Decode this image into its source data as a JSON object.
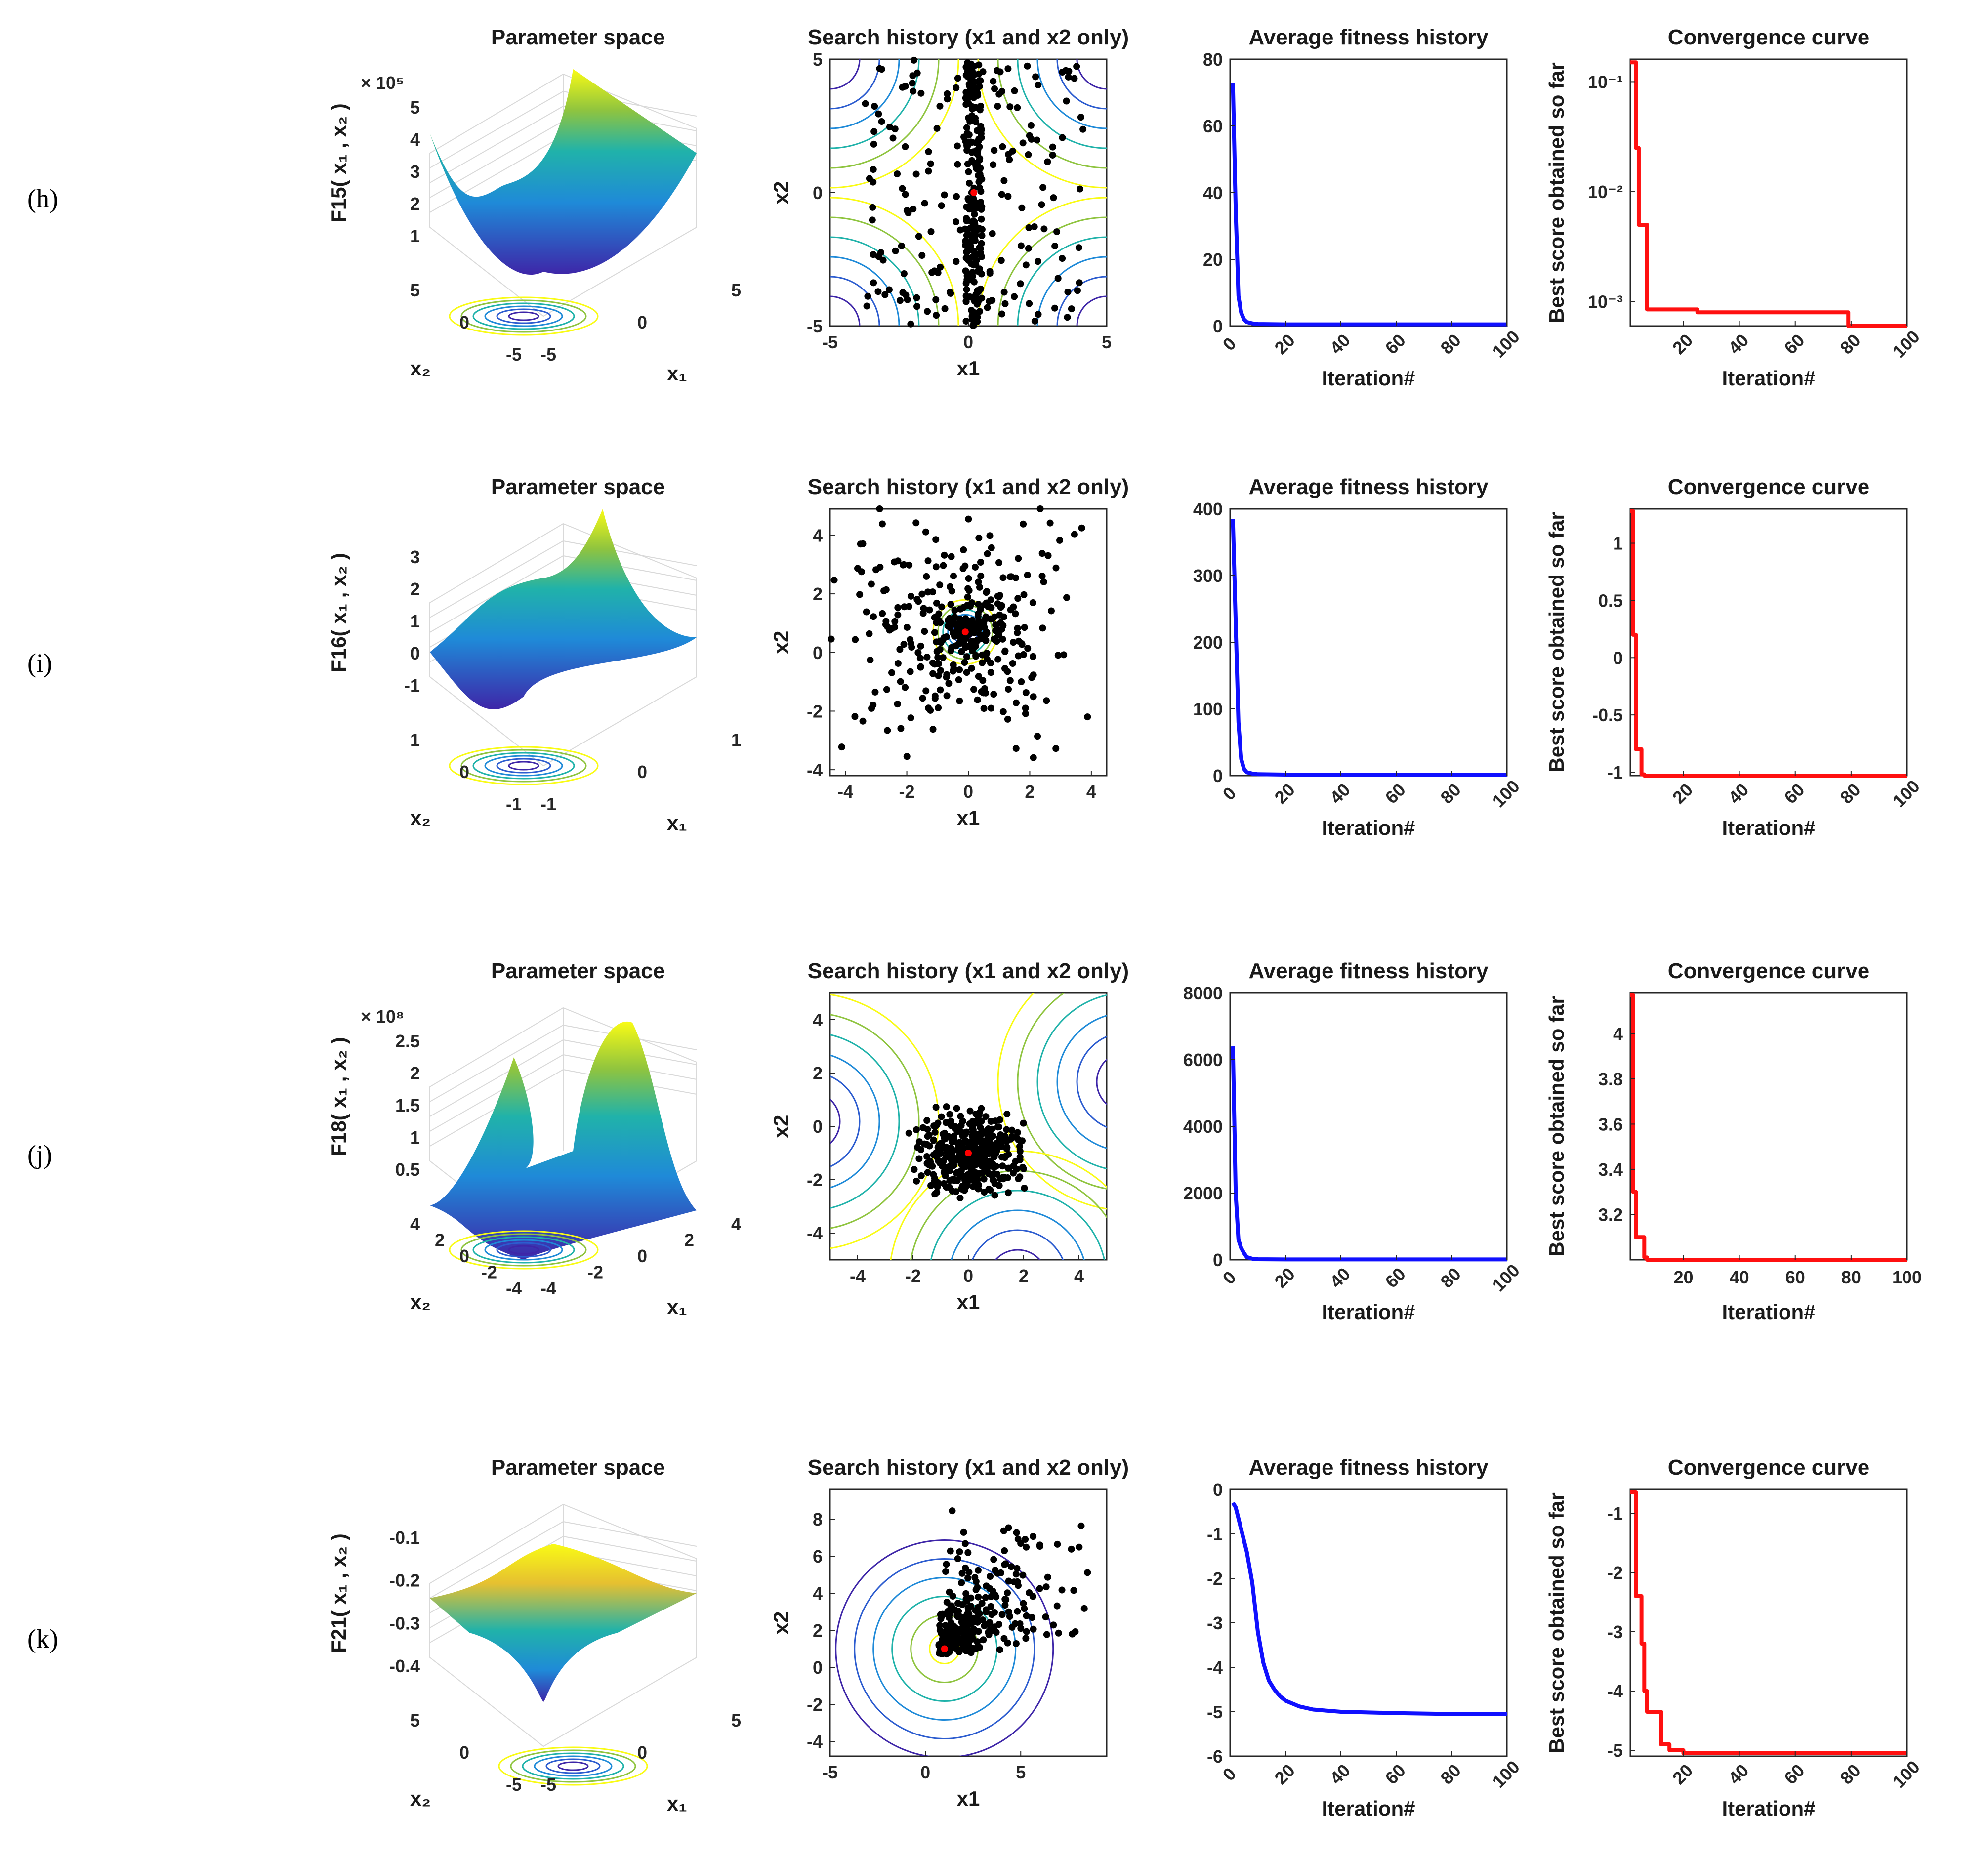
{
  "chart_data": [
    {
      "row_label": "(h)",
      "colors": {
        "surface_low": "#3e26a8",
        "surface_mid": "#20b2aa",
        "surface_high": "#f9fb15",
        "average_line": "#1010ff",
        "convergence_line": "#ff1010",
        "points": "#000000",
        "best_point": "#ff0000"
      },
      "panels": [
        {
          "type": "surface",
          "title": "Parameter space",
          "zlabel": "F15( x₁ , x₂ )",
          "exponent": "× 10⁵",
          "zticks": [
            "5",
            "4",
            "3",
            "2",
            "1"
          ],
          "x1_label": "x₁",
          "x2_label": "x₂",
          "x1_ticks": [
            "-5",
            "0",
            "5"
          ],
          "x2_ticks": [
            "5",
            "0",
            "-5"
          ]
        },
        {
          "type": "scatter",
          "title": "Search history (x1 and x2 only)",
          "xlabel": "x1",
          "ylabel": "x2",
          "xlim": [
            -5,
            5
          ],
          "ylim": [
            -5,
            5
          ],
          "xticks": [
            -5,
            0,
            5
          ],
          "yticks": [
            -5,
            0,
            5
          ],
          "best_point": [
            0.2,
            0.0
          ]
        },
        {
          "type": "line",
          "title": "Average fitness history",
          "xlabel": "Iteration#",
          "ylabel": "",
          "xlim": [
            0,
            100
          ],
          "ylim": [
            0,
            80
          ],
          "xticks": [
            0,
            20,
            40,
            60,
            80,
            100
          ],
          "yticks": [
            0,
            20,
            40,
            60,
            80
          ],
          "x": [
            1,
            2,
            3,
            4,
            5,
            6,
            8,
            10,
            20,
            40,
            60,
            80,
            100
          ],
          "y": [
            73,
            35,
            9,
            4,
            2,
            1.2,
            0.8,
            0.6,
            0.5,
            0.5,
            0.5,
            0.5,
            0.5
          ]
        },
        {
          "type": "step",
          "title": "Convergence curve",
          "xlabel": "Iteration#",
          "ylabel": "Best score obtained so far",
          "scale": "log",
          "xlim": [
            1,
            100
          ],
          "ylim": [
            0.0006,
            0.16
          ],
          "xticks": [
            20,
            40,
            60,
            80,
            100
          ],
          "yticks": [
            0.001,
            0.01,
            0.1
          ],
          "ytick_labels": [
            "10⁻³",
            "10⁻²",
            "10⁻¹"
          ],
          "x": [
            1,
            2,
            3,
            4,
            5,
            6,
            7,
            8,
            25,
            78,
            79,
            100
          ],
          "y": [
            0.15,
            0.15,
            0.025,
            0.005,
            0.005,
            0.005,
            0.00085,
            0.00085,
            0.0008,
            0.0008,
            0.0006,
            0.0006
          ]
        }
      ]
    },
    {
      "row_label": "(i)",
      "colors": {
        "surface_low": "#3e26a8",
        "surface_mid": "#20b2aa",
        "surface_high": "#f9fb15",
        "average_line": "#1010ff",
        "convergence_line": "#ff1010",
        "points": "#000000",
        "best_point": "#ff0000"
      },
      "panels": [
        {
          "type": "surface",
          "title": "Parameter space",
          "zlabel": "F16( x₁ , x₂ )",
          "exponent": "",
          "zticks": [
            "3",
            "2",
            "1",
            "0",
            "-1"
          ],
          "x1_label": "x₁",
          "x2_label": "x₂",
          "x1_ticks": [
            "-1",
            "0",
            "1"
          ],
          "x2_ticks": [
            "1",
            "0",
            "-1"
          ]
        },
        {
          "type": "scatter",
          "title": "Search history (x1 and x2 only)",
          "xlabel": "x1",
          "ylabel": "x2",
          "xlim": [
            -4.5,
            4.5
          ],
          "ylim": [
            -4.2,
            4.9
          ],
          "xticks": [
            -4,
            -2,
            0,
            2,
            4
          ],
          "yticks": [
            -4,
            -2,
            0,
            2,
            4
          ],
          "best_point": [
            -0.1,
            0.7
          ]
        },
        {
          "type": "line",
          "title": "Average fitness history",
          "xlabel": "Iteration#",
          "ylabel": "",
          "xlim": [
            0,
            100
          ],
          "ylim": [
            0,
            400
          ],
          "xticks": [
            0,
            20,
            40,
            60,
            80,
            100
          ],
          "yticks": [
            0,
            100,
            200,
            300,
            400
          ],
          "x": [
            1,
            2,
            3,
            4,
            5,
            6,
            8,
            10,
            20,
            40,
            60,
            80,
            100
          ],
          "y": [
            385,
            230,
            80,
            25,
            10,
            5,
            3,
            2,
            1.5,
            1.5,
            1.5,
            1.5,
            1.5
          ]
        },
        {
          "type": "step",
          "title": "Convergence curve",
          "xlabel": "Iteration#",
          "ylabel": "Best score obtained so far",
          "scale": "linear",
          "xlim": [
            1,
            100
          ],
          "ylim": [
            -1.03,
            1.3
          ],
          "xticks": [
            20,
            40,
            60,
            80,
            100
          ],
          "yticks": [
            -1,
            -0.5,
            0,
            0.5,
            1
          ],
          "ytick_labels": [
            "-1",
            "-0.5",
            "0",
            "0.5",
            "1"
          ],
          "x": [
            1,
            2,
            3,
            4,
            5,
            6,
            7,
            100
          ],
          "y": [
            1.28,
            0.2,
            -0.8,
            -0.8,
            -1.02,
            -1.03,
            -1.03,
            -1.03
          ]
        }
      ]
    },
    {
      "row_label": "(j)",
      "colors": {
        "surface_low": "#3e26a8",
        "surface_mid": "#20b2aa",
        "surface_high": "#f9fb15",
        "average_line": "#1010ff",
        "convergence_line": "#ff1010",
        "points": "#000000",
        "best_point": "#ff0000"
      },
      "panels": [
        {
          "type": "surface",
          "title": "Parameter space",
          "zlabel": "F18( x₁ , x₂ )",
          "exponent": "× 10⁸",
          "zticks": [
            "2.5",
            "2",
            "1.5",
            "1",
            "0.5"
          ],
          "x1_label": "x₁",
          "x2_label": "x₂",
          "x1_ticks": [
            "-4",
            "-2",
            "0",
            "2",
            "4"
          ],
          "x2_ticks": [
            "4",
            "2",
            "0",
            "-2",
            "-4"
          ]
        },
        {
          "type": "scatter",
          "title": "Search history (x1 and x2 only)",
          "xlabel": "x1",
          "ylabel": "x2",
          "xlim": [
            -5,
            5
          ],
          "ylim": [
            -5,
            5
          ],
          "xticks": [
            -4,
            -2,
            0,
            2,
            4
          ],
          "yticks": [
            -4,
            -2,
            0,
            2,
            4
          ],
          "best_point": [
            0.0,
            -1.0
          ]
        },
        {
          "type": "line",
          "title": "Average fitness history",
          "xlabel": "Iteration#",
          "ylabel": "",
          "xlim": [
            0,
            100
          ],
          "ylim": [
            0,
            8000
          ],
          "xticks": [
            0,
            20,
            40,
            60,
            80,
            100
          ],
          "yticks": [
            0,
            2000,
            4000,
            6000,
            8000
          ],
          "x": [
            1,
            2,
            3,
            4,
            5,
            6,
            8,
            10,
            20,
            40,
            60,
            80,
            100
          ],
          "y": [
            6400,
            2000,
            600,
            350,
            200,
            80,
            30,
            15,
            10,
            10,
            10,
            10,
            10
          ]
        },
        {
          "type": "step",
          "title": "Convergence curve",
          "xlabel": "Iteration#",
          "ylabel": "Best score obtained so far",
          "scale": "linear",
          "xlim": [
            1,
            100
          ],
          "ylim": [
            3.0,
            4.18
          ],
          "xticks": [
            20,
            40,
            60,
            80,
            100
          ],
          "yticks": [
            3.2,
            3.4,
            3.6,
            3.8,
            4.0
          ],
          "ytick_labels": [
            "3.2",
            "3.4",
            "3.6",
            "3.8",
            "4"
          ],
          "x": [
            1,
            2,
            3,
            4,
            5,
            6,
            7,
            8,
            100
          ],
          "y": [
            4.17,
            3.3,
            3.1,
            3.1,
            3.1,
            3.01,
            3.0,
            3.0,
            3.0
          ]
        }
      ]
    },
    {
      "row_label": "(k)",
      "colors": {
        "surface_low": "#3e26a8",
        "surface_mid": "#20b2aa",
        "surface_high": "#f9fb15",
        "average_line": "#1010ff",
        "convergence_line": "#ff1010",
        "points": "#000000",
        "best_point": "#ff0000"
      },
      "panels": [
        {
          "type": "surface",
          "title": "Parameter space",
          "zlabel": "F21( x₁ , x₂ )",
          "exponent": "",
          "zticks": [
            "-0.1",
            "-0.2",
            "-0.3",
            "-0.4"
          ],
          "x1_label": "x₁",
          "x2_label": "x₂",
          "x1_ticks": [
            "-5",
            "0",
            "5"
          ],
          "x2_ticks": [
            "5",
            "0",
            "-5"
          ]
        },
        {
          "type": "scatter",
          "title": "Search history (x1 and x2 only)",
          "xlabel": "x1",
          "ylabel": "x2",
          "xlim": [
            -5,
            9.5
          ],
          "ylim": [
            -4.8,
            9.6
          ],
          "xticks": [
            -5,
            0,
            5
          ],
          "yticks": [
            -4,
            -2,
            0,
            2,
            4,
            6,
            8
          ],
          "best_point": [
            1.0,
            1.0
          ]
        },
        {
          "type": "line",
          "title": "Average fitness history",
          "xlabel": "Iteration#",
          "ylabel": "",
          "xlim": [
            0,
            100
          ],
          "ylim": [
            -6,
            0
          ],
          "xticks": [
            0,
            20,
            40,
            60,
            80,
            100
          ],
          "yticks": [
            -6,
            -5,
            -4,
            -3,
            -2,
            -1,
            0
          ],
          "x": [
            1,
            2,
            4,
            6,
            8,
            10,
            12,
            14,
            16,
            18,
            20,
            25,
            30,
            40,
            60,
            80,
            100
          ],
          "y": [
            -0.3,
            -0.4,
            -0.9,
            -1.4,
            -2.1,
            -3.2,
            -3.9,
            -4.3,
            -4.5,
            -4.65,
            -4.75,
            -4.88,
            -4.95,
            -5.0,
            -5.03,
            -5.05,
            -5.05
          ]
        },
        {
          "type": "step",
          "title": "Convergence curve",
          "xlabel": "Iteration#",
          "ylabel": "Best score obtained so far",
          "scale": "linear",
          "xlim": [
            1,
            100
          ],
          "ylim": [
            -5.1,
            -0.6
          ],
          "xticks": [
            20,
            40,
            60,
            80,
            100
          ],
          "yticks": [
            -5,
            -4,
            -3,
            -2,
            -1
          ],
          "ytick_labels": [
            "-5",
            "-4",
            "-3",
            "-2",
            "-1"
          ],
          "x": [
            1,
            3,
            5,
            6,
            7,
            9,
            10,
            12,
            15,
            20,
            100
          ],
          "y": [
            -0.65,
            -2.4,
            -3.2,
            -4.0,
            -4.35,
            -4.35,
            -4.35,
            -4.9,
            -5.0,
            -5.05,
            -5.05
          ]
        }
      ]
    }
  ]
}
